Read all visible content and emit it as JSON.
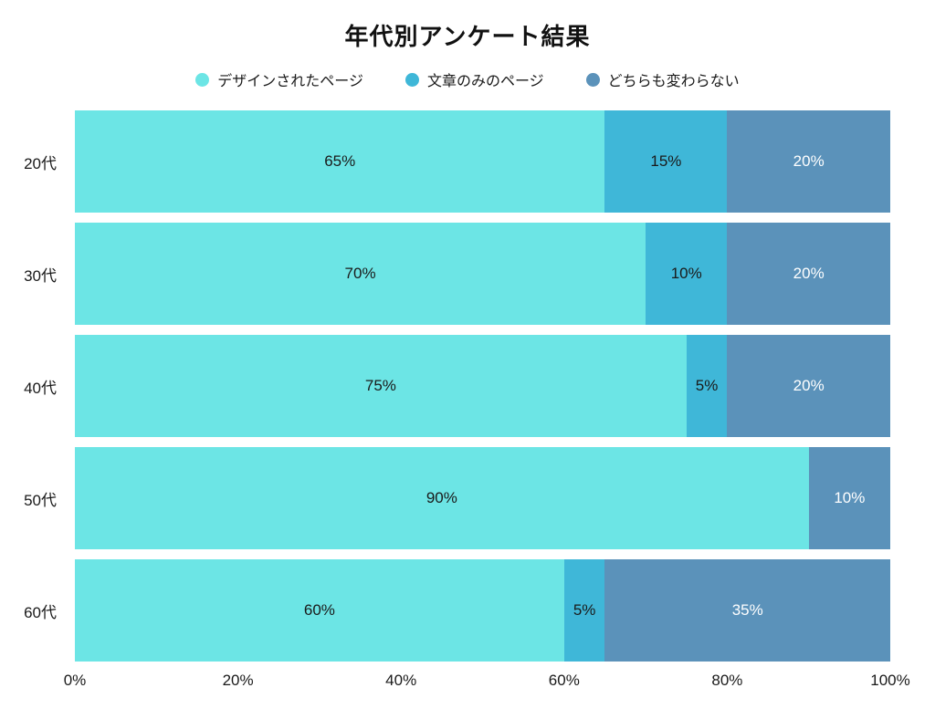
{
  "background": "#ffffff",
  "chart_data": {
    "type": "bar",
    "orientation": "horizontal",
    "stacked": true,
    "title": "年代別アンケート結果",
    "categories": [
      "20代",
      "30代",
      "40代",
      "50代",
      "60代"
    ],
    "series": [
      {
        "name": "デザインされたページ",
        "color": "#6ce5e5",
        "label_color": "#1a1a1a",
        "values": [
          65,
          70,
          75,
          90,
          60
        ]
      },
      {
        "name": "文章のみのページ",
        "color": "#3fb7d8",
        "label_color": "#1a1a1a",
        "values": [
          15,
          10,
          5,
          0,
          5
        ]
      },
      {
        "name": "どちらも変わらない",
        "color": "#5b92ba",
        "label_color": "#ffffff",
        "values": [
          20,
          20,
          20,
          10,
          35
        ]
      }
    ],
    "value_suffix": "%",
    "x_ticks": [
      "0%",
      "20%",
      "40%",
      "60%",
      "80%",
      "100%"
    ],
    "xlim": [
      0,
      100
    ],
    "legend_position": "top",
    "grid": false
  }
}
